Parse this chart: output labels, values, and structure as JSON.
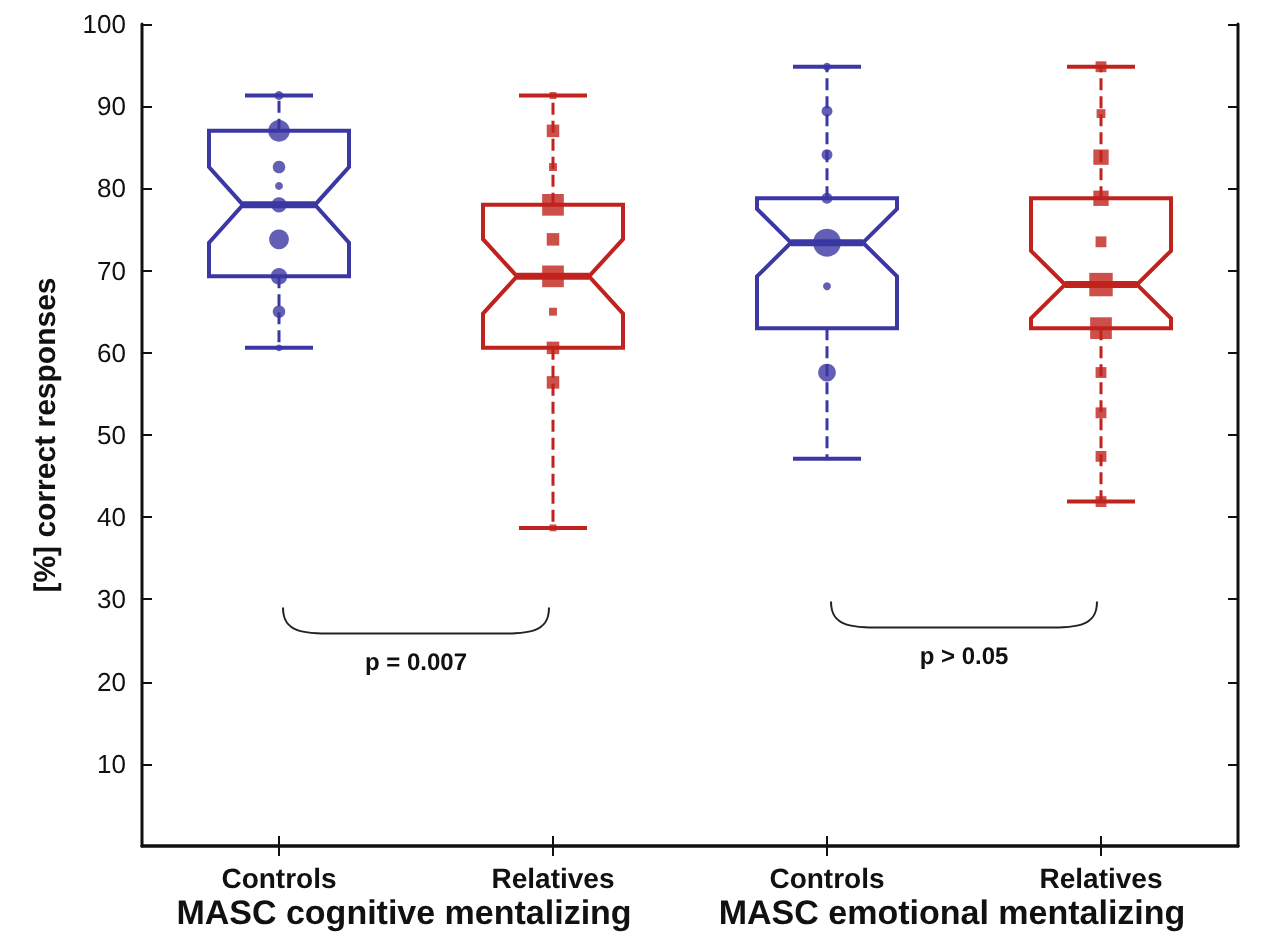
{
  "chart_data": {
    "type": "box",
    "ylabel": "[%] correct responses",
    "categories": [
      "Controls",
      "Relatives",
      "Controls",
      "Relatives"
    ],
    "ylim": [
      0,
      100
    ],
    "yticks": [
      10,
      20,
      30,
      40,
      50,
      60,
      70,
      80,
      90,
      100
    ],
    "annotations": [
      "MASC cognitive mentalizing",
      "MASC emotional mentalizing",
      "p = 0.007",
      "p > 0.05"
    ],
    "series": [
      {
        "colors": [
          "#3b37a3",
          "#c0231d",
          "#3b37a3",
          "#c0231d"
        ],
        "line_style": "dashed",
        "boxes": [
          {
            "low": 60.6,
            "q1": 69.3,
            "median": 78,
            "q3": 87,
            "high": 91.3
          },
          {
            "low": 38.7,
            "q1": 60.6,
            "median": 69.3,
            "q3": 78,
            "high": 91.3
          },
          {
            "low": 47.1,
            "q1": 63,
            "median": 73.4,
            "q3": 78.8,
            "high": 94.8
          },
          {
            "low": 41.9,
            "q1": 63,
            "median": 68.3,
            "q3": 78.8,
            "high": 94.8
          }
        ]
      },
      {
        "type": "bubble",
        "color": "#3b37a3",
        "marker": "circle",
        "values": [
          91.3,
          null,
          94.8,
          null
        ],
        "sizes": [
          0.1,
          null,
          0.08,
          null
        ]
      },
      {
        "type": "bubble",
        "color": "#3b37a3",
        "marker": "circle",
        "values": [
          87,
          null,
          89.4,
          null
        ],
        "sizes": [
          0.6,
          null,
          0.15,
          null
        ]
      },
      {
        "type": "bubble",
        "color": "#3b37a3",
        "marker": "circle",
        "values": [
          82.6,
          null,
          84.1,
          null
        ],
        "sizes": [
          0.2,
          null,
          0.15,
          null
        ]
      },
      {
        "type": "bubble",
        "color": "#3b37a3",
        "marker": "circle",
        "values": [
          80.3,
          null,
          78.8,
          null
        ],
        "sizes": [
          0.08,
          null,
          0.15,
          null
        ]
      },
      {
        "type": "bubble",
        "color": "#3b37a3",
        "marker": "circle",
        "values": [
          78,
          null,
          73.4,
          null
        ],
        "sizes": [
          0.3,
          null,
          1,
          null
        ]
      },
      {
        "type": "bubble",
        "color": "#3b37a3",
        "marker": "circle",
        "values": [
          73.8,
          null,
          68.1,
          null
        ],
        "sizes": [
          0.5,
          null,
          0.08,
          null
        ]
      },
      {
        "type": "bubble",
        "color": "#3b37a3",
        "marker": "circle",
        "values": [
          69.3,
          null,
          57.6,
          null
        ],
        "sizes": [
          0.35,
          null,
          0.4,
          null
        ]
      },
      {
        "type": "bubble",
        "color": "#3b37a3",
        "marker": "circle",
        "values": [
          65,
          null,
          null,
          null
        ],
        "sizes": [
          0.2,
          null,
          null,
          null
        ]
      },
      {
        "type": "bubble",
        "color": "#3b37a3",
        "marker": "circle",
        "values": [
          60.6,
          null,
          null,
          null
        ],
        "sizes": [
          0.06,
          null,
          null,
          null
        ]
      },
      {
        "type": "bubble",
        "color": "#c0231d",
        "marker": "square",
        "values": [
          null,
          91.3,
          null,
          94.8
        ],
        "sizes": [
          null,
          0.06,
          null,
          0.15
        ]
      },
      {
        "type": "bubble",
        "color": "#c0231d",
        "marker": "square",
        "values": [
          null,
          87,
          null,
          89.1
        ],
        "sizes": [
          null,
          0.2,
          null,
          0.1
        ]
      },
      {
        "type": "bubble",
        "color": "#c0231d",
        "marker": "square",
        "values": [
          null,
          82.6,
          null,
          83.8
        ],
        "sizes": [
          null,
          0.08,
          null,
          0.3
        ]
      },
      {
        "type": "bubble",
        "color": "#c0231d",
        "marker": "square",
        "values": [
          null,
          78,
          null,
          78.8
        ],
        "sizes": [
          null,
          0.6,
          null,
          0.3
        ]
      },
      {
        "type": "bubble",
        "color": "#c0231d",
        "marker": "square",
        "values": [
          null,
          73.8,
          null,
          73.5
        ],
        "sizes": [
          null,
          0.2,
          null,
          0.15
        ]
      },
      {
        "type": "bubble",
        "color": "#c0231d",
        "marker": "square",
        "values": [
          null,
          69.3,
          null,
          68.3
        ],
        "sizes": [
          null,
          0.6,
          null,
          0.7
        ]
      },
      {
        "type": "bubble",
        "color": "#c0231d",
        "marker": "square",
        "values": [
          null,
          65,
          null,
          63
        ],
        "sizes": [
          null,
          0.08,
          null,
          0.6
        ]
      },
      {
        "type": "bubble",
        "color": "#c0231d",
        "marker": "square",
        "values": [
          null,
          60.6,
          null,
          57.6
        ],
        "sizes": [
          null,
          0.2,
          null,
          0.15
        ]
      },
      {
        "type": "bubble",
        "color": "#c0231d",
        "marker": "square",
        "values": [
          null,
          56.4,
          null,
          52.7
        ],
        "sizes": [
          null,
          0.2,
          null,
          0.15
        ]
      },
      {
        "type": "bubble",
        "color": "#c0231d",
        "marker": "square",
        "values": [
          null,
          38.7,
          null,
          47.4
        ],
        "sizes": [
          null,
          0.06,
          null,
          0.15
        ]
      },
      {
        "type": "bubble",
        "color": "#c0231d",
        "marker": "square",
        "values": [
          null,
          null,
          null,
          41.9
        ],
        "sizes": [
          null,
          null,
          null,
          0.15
        ]
      }
    ]
  }
}
